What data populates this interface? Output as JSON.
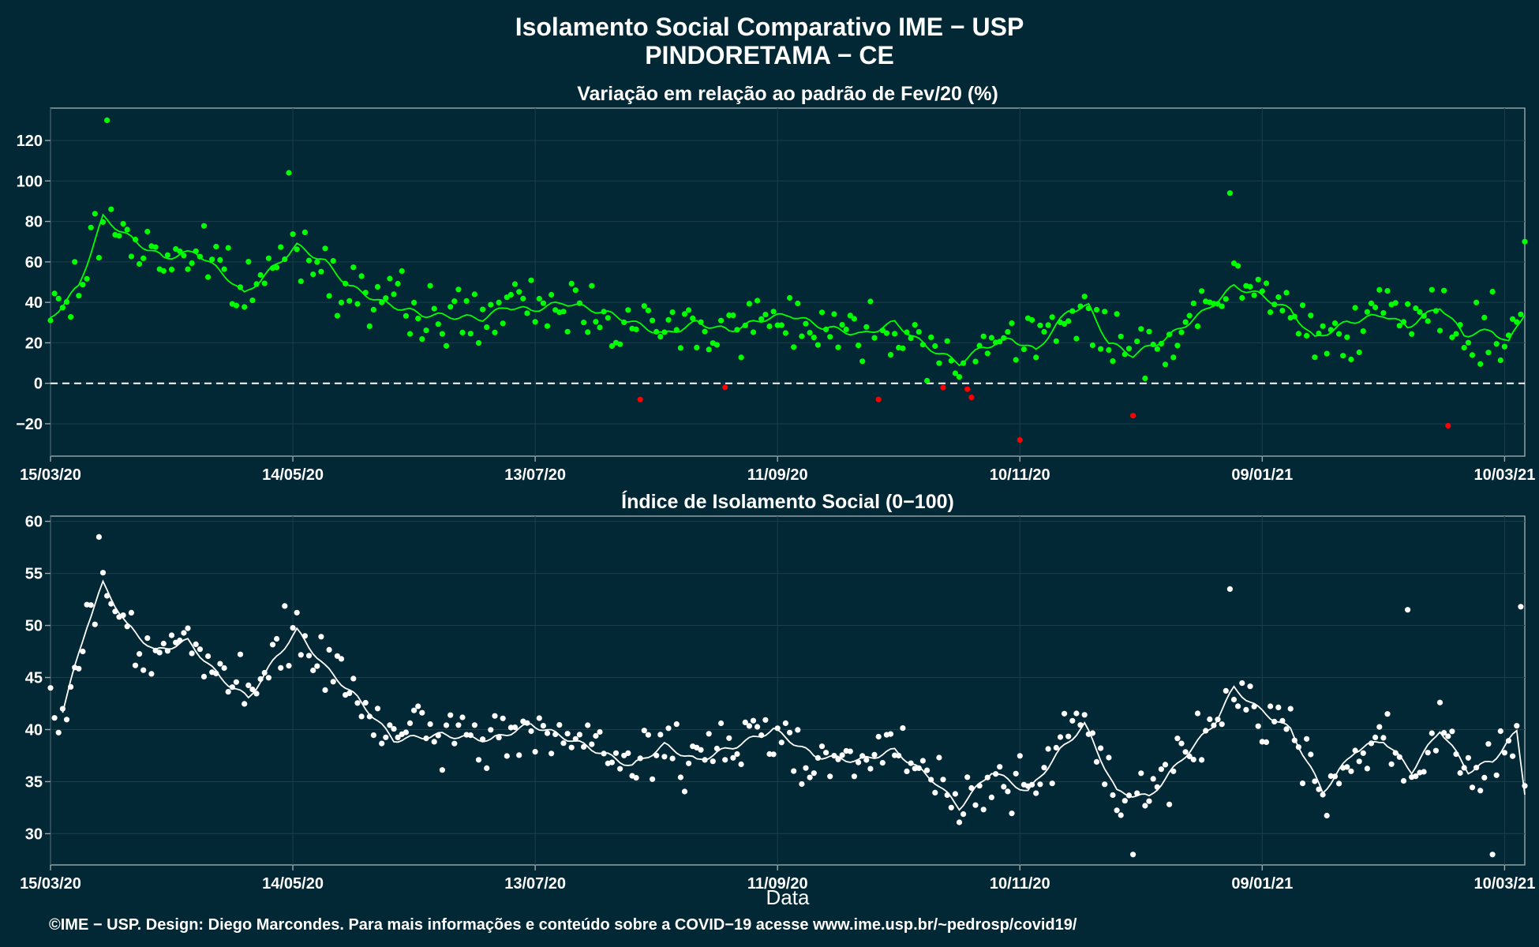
{
  "header": {
    "title": "Isolamento Social Comparativo IME − USP",
    "subtitle": "PINDORETAMA − CE"
  },
  "footer": {
    "xlabel": "Data",
    "credit": "©IME − USP. Design: Diego Marcondes. Para mais informações e conteúdo sobre a COVID−19 acesse www.ime.usp.br/~pedrosp/covid19/"
  },
  "colors": {
    "background": "#022735",
    "axes": "#9aa8ad",
    "grid": "#1c3e4b",
    "text": "#ffffff",
    "positive": "#00ff00",
    "negative": "#ff0000",
    "index_points": "#ffffff"
  },
  "chart_data": [
    {
      "type": "scatter",
      "title": "Variação em relação ao padrão de Fev/20 (%)",
      "xlabel": "",
      "ylabel": "",
      "x_range": [
        "2020-03-15",
        "2021-03-15"
      ],
      "ylim": [
        -36,
        136
      ],
      "yticks": [
        -20,
        0,
        20,
        40,
        60,
        80,
        100,
        120
      ],
      "xticks": [
        {
          "date": "2020-03-15",
          "label": "15/03/20"
        },
        {
          "date": "2020-05-14",
          "label": "14/05/20"
        },
        {
          "date": "2020-07-13",
          "label": "13/07/20"
        },
        {
          "date": "2020-09-11",
          "label": "11/09/20"
        },
        {
          "date": "2020-11-10",
          "label": "10/11/20"
        },
        {
          "date": "2021-01-09",
          "label": "09/01/21"
        },
        {
          "date": "2021-03-10",
          "label": "10/03/21"
        }
      ],
      "reference_line": 0,
      "grid": true,
      "point_color_rule": "green when value ≥ 0, red when value < 0",
      "trend_anchors": [
        {
          "date": "2020-03-15",
          "value": 32
        },
        {
          "date": "2020-03-22",
          "value": 48
        },
        {
          "date": "2020-03-28",
          "value": 82
        },
        {
          "date": "2020-04-05",
          "value": 70
        },
        {
          "date": "2020-04-12",
          "value": 62
        },
        {
          "date": "2020-04-20",
          "value": 65
        },
        {
          "date": "2020-04-28",
          "value": 52
        },
        {
          "date": "2020-05-02",
          "value": 44
        },
        {
          "date": "2020-05-08",
          "value": 55
        },
        {
          "date": "2020-05-15",
          "value": 68
        },
        {
          "date": "2020-05-22",
          "value": 60
        },
        {
          "date": "2020-05-28",
          "value": 48
        },
        {
          "date": "2020-06-05",
          "value": 40
        },
        {
          "date": "2020-06-15",
          "value": 34
        },
        {
          "date": "2020-06-30",
          "value": 32
        },
        {
          "date": "2020-07-06",
          "value": 38
        },
        {
          "date": "2020-07-12",
          "value": 36
        },
        {
          "date": "2020-07-20",
          "value": 40
        },
        {
          "date": "2020-08-01",
          "value": 34
        },
        {
          "date": "2020-08-14",
          "value": 24
        },
        {
          "date": "2020-08-22",
          "value": 30
        },
        {
          "date": "2020-08-30",
          "value": 26
        },
        {
          "date": "2020-09-08",
          "value": 32
        },
        {
          "date": "2020-09-14",
          "value": 34
        },
        {
          "date": "2020-09-22",
          "value": 28
        },
        {
          "date": "2020-10-02",
          "value": 24
        },
        {
          "date": "2020-10-10",
          "value": 30
        },
        {
          "date": "2020-10-18",
          "value": 18
        },
        {
          "date": "2020-10-26",
          "value": 10
        },
        {
          "date": "2020-11-01",
          "value": 18
        },
        {
          "date": "2020-11-08",
          "value": 22
        },
        {
          "date": "2020-11-14",
          "value": 16
        },
        {
          "date": "2020-11-22",
          "value": 36
        },
        {
          "date": "2020-11-27",
          "value": 38
        },
        {
          "date": "2020-12-02",
          "value": 20
        },
        {
          "date": "2020-12-08",
          "value": 14
        },
        {
          "date": "2020-12-16",
          "value": 22
        },
        {
          "date": "2020-12-26",
          "value": 36
        },
        {
          "date": "2021-01-02",
          "value": 48
        },
        {
          "date": "2021-01-08",
          "value": 44
        },
        {
          "date": "2021-01-16",
          "value": 36
        },
        {
          "date": "2021-01-22",
          "value": 22
        },
        {
          "date": "2021-01-30",
          "value": 30
        },
        {
          "date": "2021-02-08",
          "value": 34
        },
        {
          "date": "2021-02-14",
          "value": 28
        },
        {
          "date": "2021-02-22",
          "value": 38
        },
        {
          "date": "2021-02-28",
          "value": 24
        },
        {
          "date": "2021-03-07",
          "value": 26
        },
        {
          "date": "2021-03-11",
          "value": 20
        },
        {
          "date": "2021-03-15",
          "value": 35
        }
      ],
      "noise_amplitude": 22,
      "highlighted_points": [
        {
          "date": "2020-03-29",
          "value": 130
        },
        {
          "date": "2020-05-13",
          "value": 104
        },
        {
          "date": "2020-08-08",
          "value": -8
        },
        {
          "date": "2020-08-29",
          "value": -2
        },
        {
          "date": "2020-10-06",
          "value": -8
        },
        {
          "date": "2020-10-29",
          "value": -7
        },
        {
          "date": "2020-11-10",
          "value": -28
        },
        {
          "date": "2020-12-08",
          "value": -16
        },
        {
          "date": "2021-01-01",
          "value": 94
        },
        {
          "date": "2021-02-24",
          "value": -21
        },
        {
          "date": "2021-03-15",
          "value": 70
        }
      ]
    },
    {
      "type": "scatter",
      "title": "Índice de Isolamento Social (0−100)",
      "xlabel": "Data",
      "ylabel": "",
      "x_range": [
        "2020-03-15",
        "2021-03-15"
      ],
      "ylim": [
        27,
        60.5
      ],
      "yticks": [
        30,
        35,
        40,
        45,
        50,
        55,
        60
      ],
      "xticks": [
        {
          "date": "2020-03-15",
          "label": "15/03/20"
        },
        {
          "date": "2020-05-14",
          "label": "14/05/20"
        },
        {
          "date": "2020-07-13",
          "label": "13/07/20"
        },
        {
          "date": "2020-09-11",
          "label": "11/09/20"
        },
        {
          "date": "2020-11-10",
          "label": "10/11/20"
        },
        {
          "date": "2021-01-09",
          "label": "09/01/21"
        },
        {
          "date": "2021-03-10",
          "label": "10/03/21"
        }
      ],
      "grid": true,
      "trend_anchors": [
        {
          "date": "2020-03-18",
          "value": 41.8
        },
        {
          "date": "2020-03-24",
          "value": 50
        },
        {
          "date": "2020-03-28",
          "value": 54
        },
        {
          "date": "2020-04-03",
          "value": 50
        },
        {
          "date": "2020-04-10",
          "value": 47.5
        },
        {
          "date": "2020-04-18",
          "value": 48.5
        },
        {
          "date": "2020-04-26",
          "value": 45
        },
        {
          "date": "2020-05-03",
          "value": 43
        },
        {
          "date": "2020-05-10",
          "value": 47
        },
        {
          "date": "2020-05-15",
          "value": 49.5
        },
        {
          "date": "2020-05-22",
          "value": 46
        },
        {
          "date": "2020-05-30",
          "value": 43
        },
        {
          "date": "2020-06-08",
          "value": 39
        },
        {
          "date": "2020-06-20",
          "value": 39.5
        },
        {
          "date": "2020-07-02",
          "value": 39
        },
        {
          "date": "2020-07-12",
          "value": 40.5
        },
        {
          "date": "2020-07-22",
          "value": 39
        },
        {
          "date": "2020-08-06",
          "value": 36.5
        },
        {
          "date": "2020-08-14",
          "value": 38.5
        },
        {
          "date": "2020-08-22",
          "value": 37
        },
        {
          "date": "2020-09-01",
          "value": 38.5
        },
        {
          "date": "2020-09-10",
          "value": 40
        },
        {
          "date": "2020-09-20",
          "value": 37.5
        },
        {
          "date": "2020-10-01",
          "value": 37
        },
        {
          "date": "2020-10-10",
          "value": 38
        },
        {
          "date": "2020-10-20",
          "value": 35
        },
        {
          "date": "2020-10-26",
          "value": 32.5
        },
        {
          "date": "2020-11-03",
          "value": 36
        },
        {
          "date": "2020-11-12",
          "value": 34
        },
        {
          "date": "2020-11-20",
          "value": 38
        },
        {
          "date": "2020-11-26",
          "value": 40.5
        },
        {
          "date": "2020-12-04",
          "value": 34
        },
        {
          "date": "2020-12-12",
          "value": 33.5
        },
        {
          "date": "2020-12-22",
          "value": 38
        },
        {
          "date": "2020-12-28",
          "value": 40.5
        },
        {
          "date": "2021-01-02",
          "value": 44
        },
        {
          "date": "2021-01-08",
          "value": 42
        },
        {
          "date": "2021-01-16",
          "value": 40
        },
        {
          "date": "2021-01-24",
          "value": 34
        },
        {
          "date": "2021-02-01",
          "value": 38
        },
        {
          "date": "2021-02-08",
          "value": 39
        },
        {
          "date": "2021-02-15",
          "value": 36
        },
        {
          "date": "2021-02-22",
          "value": 40
        },
        {
          "date": "2021-03-01",
          "value": 36
        },
        {
          "date": "2021-03-07",
          "value": 37
        },
        {
          "date": "2021-03-13",
          "value": 39.8
        },
        {
          "date": "2021-03-15",
          "value": 34
        }
      ],
      "noise_amplitude": 4.2,
      "highlighted_points": [
        {
          "date": "2020-03-27",
          "value": 58.5
        },
        {
          "date": "2020-03-15",
          "value": 44
        },
        {
          "date": "2020-12-08",
          "value": 27.6
        },
        {
          "date": "2021-01-01",
          "value": 53.5
        },
        {
          "date": "2021-02-14",
          "value": 51.5
        },
        {
          "date": "2021-03-07",
          "value": 28
        },
        {
          "date": "2021-03-14",
          "value": 51.8
        }
      ]
    }
  ]
}
